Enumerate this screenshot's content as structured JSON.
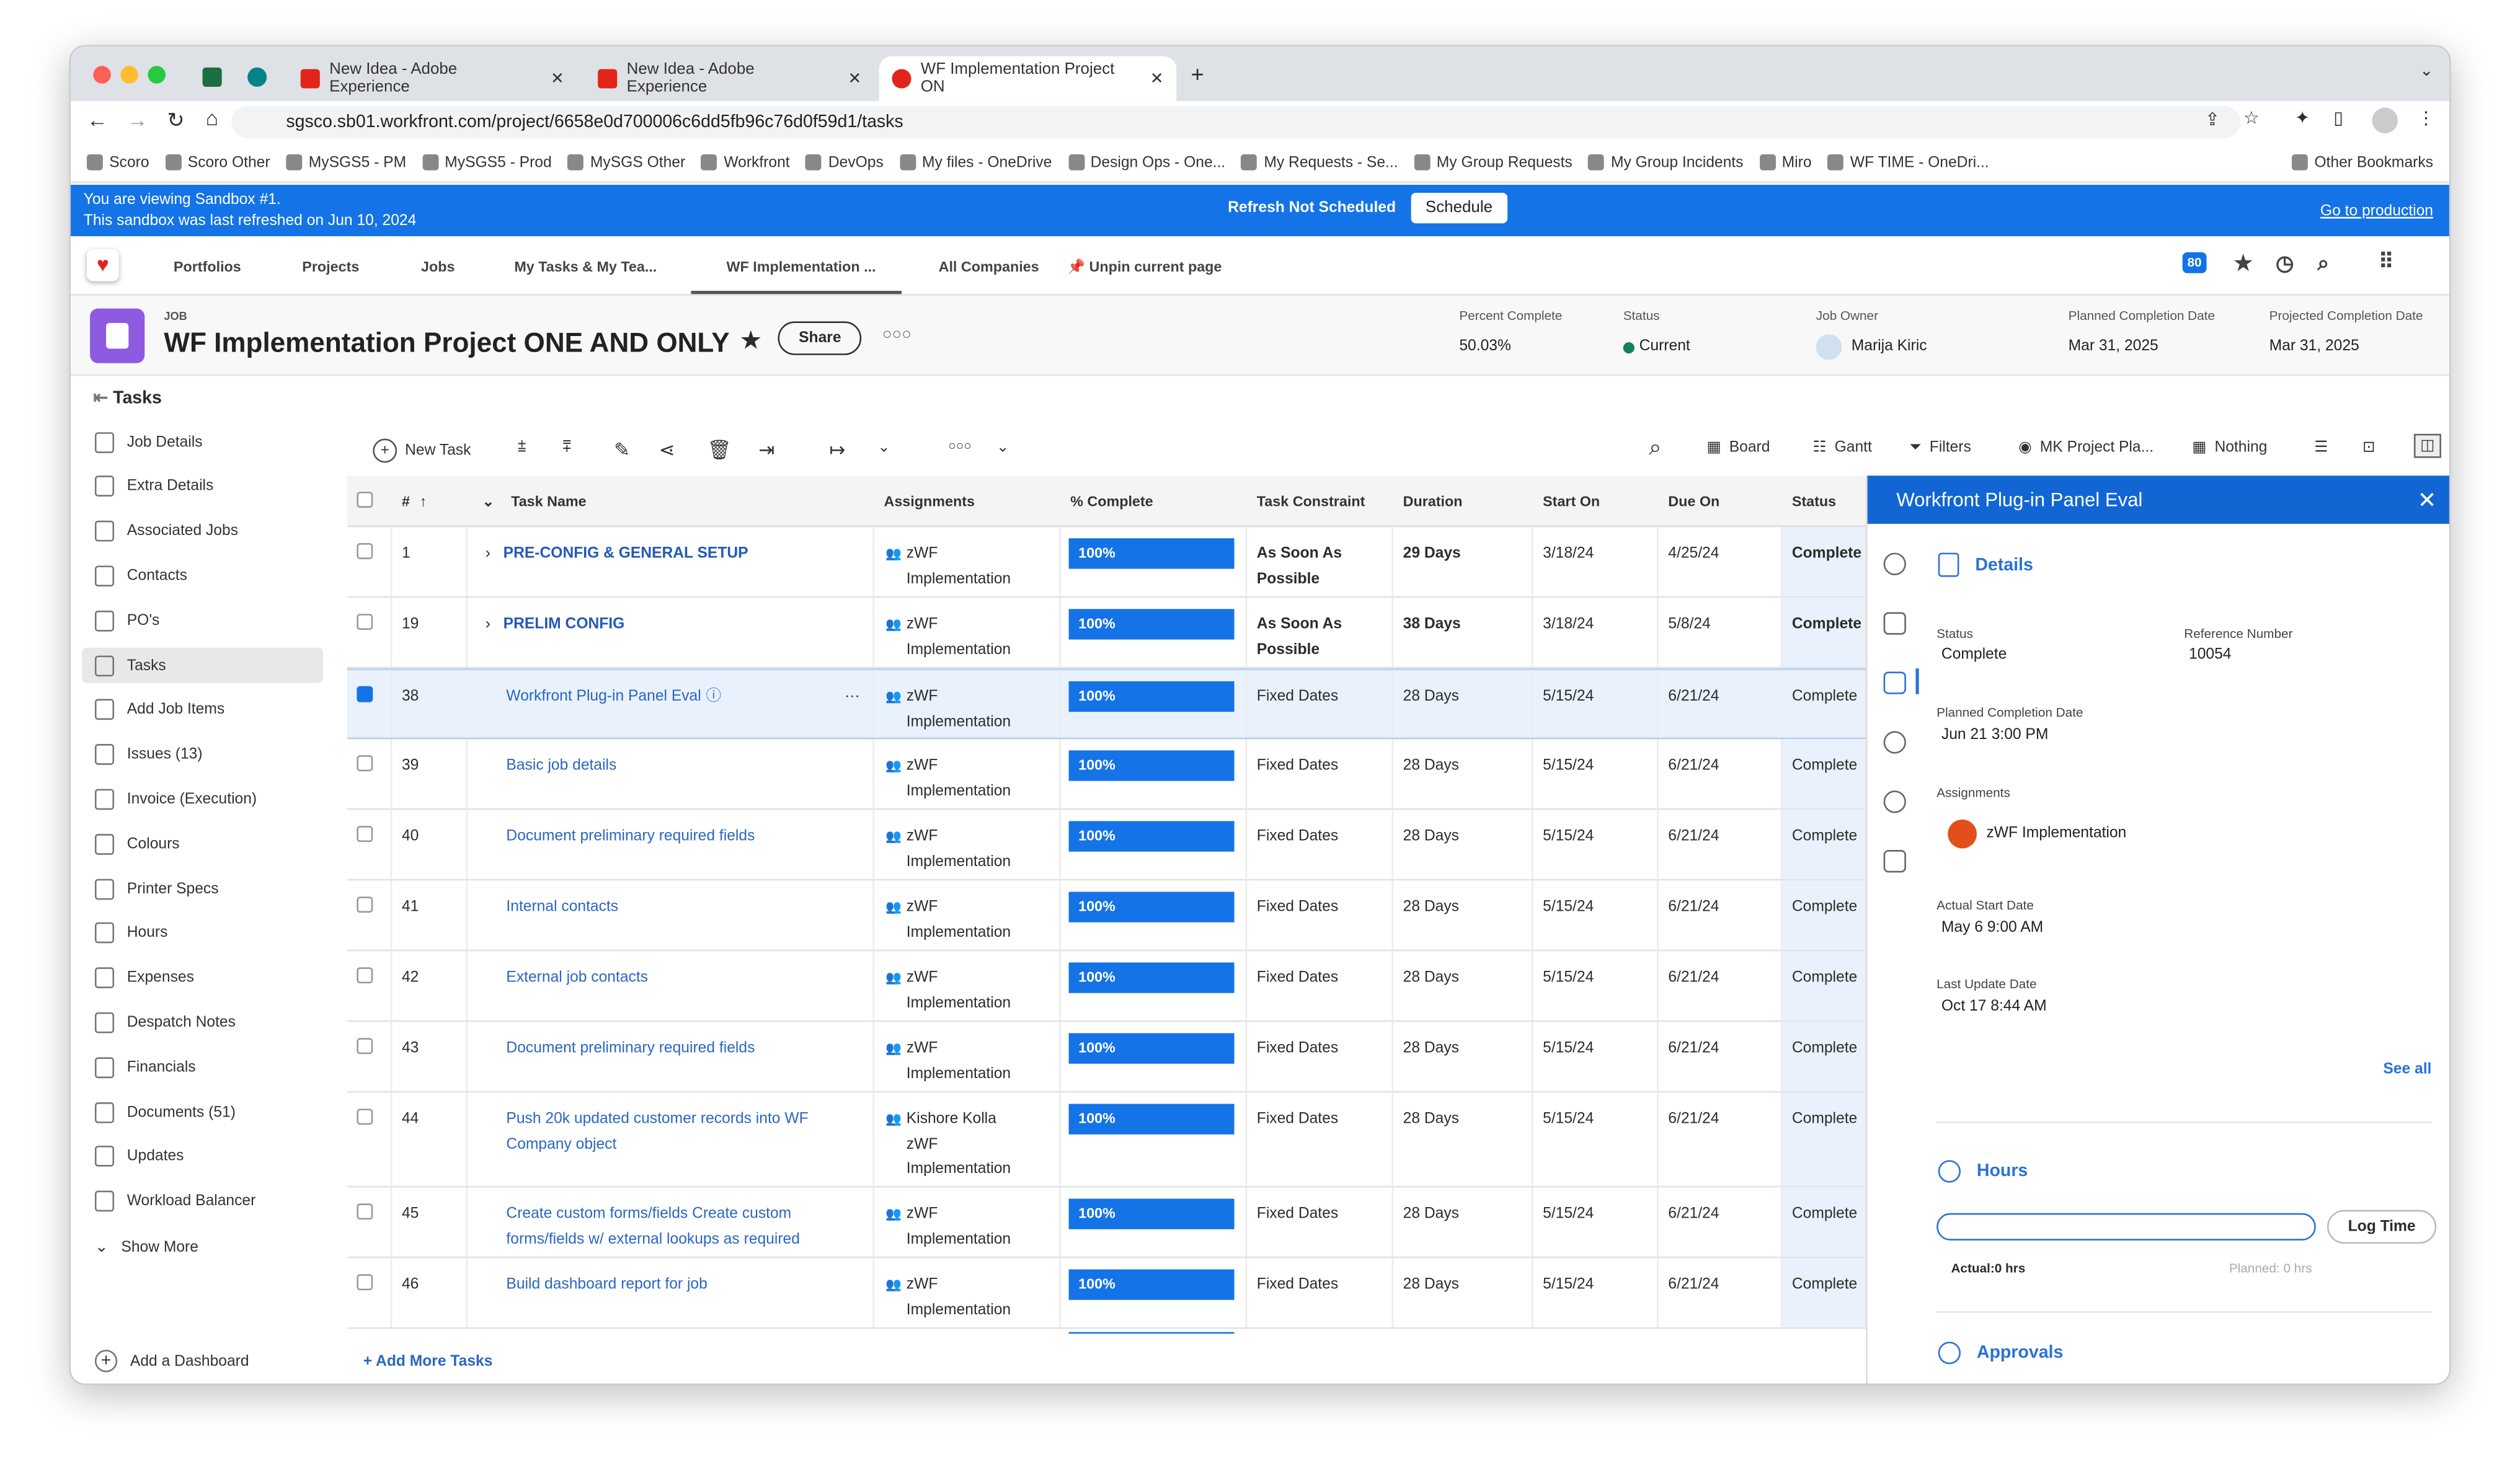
{
  "browser": {
    "tabs": [
      {
        "label": "New Idea - Adobe Experience"
      },
      {
        "label": "New Idea - Adobe Experience"
      },
      {
        "label": "WF Implementation Project ON"
      }
    ],
    "url": "sgsco.sb01.workfront.com/project/6658e0d700006c6dd5fb96c76d0f59d1/tasks",
    "bookmarks": [
      "Scoro",
      "Scoro Other",
      "MySGS5 - PM",
      "MySGS5 - Prod",
      "MySGS Other",
      "Workfront",
      "DevOps",
      "My files - OneDrive",
      "Design Ops - One...",
      "My Requests - Se...",
      "My Group Requests",
      "My Group Incidents",
      "Miro",
      "WF TIME - OneDri..."
    ],
    "other_bookmarks": "Other Bookmarks"
  },
  "banner": {
    "line1": "You are viewing Sandbox #1.",
    "line2": "This sandbox was last refreshed on Jun 10, 2024",
    "refresh": "Refresh Not Scheduled",
    "schedule": "Schedule",
    "production": "Go to production",
    "color": "#1473e6"
  },
  "nav": {
    "items": [
      "Portfolios",
      "Projects",
      "Jobs",
      "My Tasks & My Tea...",
      "WF Implementation ...",
      "All Companies"
    ],
    "unpin": "Unpin current page",
    "badge": "80"
  },
  "header": {
    "type": "JOB",
    "title": "WF Implementation Project ONE AND ONLY",
    "share": "Share",
    "fields": [
      {
        "label": "Percent Complete",
        "value": "50.03%"
      },
      {
        "label": "Status",
        "value": "Current"
      },
      {
        "label": "Job Owner",
        "value": "Marija Kiric"
      },
      {
        "label": "Planned Completion Date",
        "value": "Mar 31, 2025"
      },
      {
        "label": "Projected Completion Date",
        "value": "Mar 31, 2025"
      }
    ]
  },
  "section_title": "Tasks",
  "sidebar": {
    "items": [
      "Job Details",
      "Extra Details",
      "Associated Jobs",
      "Contacts",
      "PO's",
      "Tasks",
      "Add Job Items",
      "Issues (13)",
      "Invoice (Execution)",
      "Colours",
      "Printer Specs",
      "Hours",
      "Expenses",
      "Despatch Notes",
      "Financials",
      "Documents (51)",
      "Updates",
      "Workload Balancer"
    ],
    "active": "Tasks",
    "show_more": "Show More",
    "add_dashboard": "Add a Dashboard"
  },
  "toolbar": {
    "new_task": "New Task",
    "board": "Board",
    "gantt": "Gantt",
    "filters": "Filters",
    "view": "MK Project Pla...",
    "grouping": "Nothing"
  },
  "table": {
    "columns": [
      "#",
      "Task Name",
      "Assignments",
      "% Complete",
      "Task Constraint",
      "Duration",
      "Start On",
      "Due On",
      "Status"
    ],
    "rows": [
      {
        "num": "1",
        "name": "PRE-CONFIG & GENERAL SETUP",
        "parent": true,
        "assign": [
          "zWF",
          "Implementation"
        ],
        "pct": "100%",
        "constraint": "As Soon As Possible",
        "duration": "29 Days",
        "start": "3/18/24",
        "due": "4/25/24",
        "status": "Complete"
      },
      {
        "num": "19",
        "name": "PRELIM CONFIG",
        "parent": true,
        "assign": [
          "zWF",
          "Implementation"
        ],
        "pct": "100%",
        "constraint": "As Soon As Possible",
        "duration": "38 Days",
        "start": "3/18/24",
        "due": "5/8/24",
        "status": "Complete"
      },
      {
        "num": "38",
        "name": "Workfront Plug-in Panel Eval",
        "selected": true,
        "assign": [
          "zWF",
          "Implementation"
        ],
        "pct": "100%",
        "constraint": "Fixed Dates",
        "duration": "28 Days",
        "start": "5/15/24",
        "due": "6/21/24",
        "status": "Complete"
      },
      {
        "num": "39",
        "name": "Basic job details",
        "assign": [
          "zWF",
          "Implementation"
        ],
        "pct": "100%",
        "constraint": "Fixed Dates",
        "duration": "28 Days",
        "start": "5/15/24",
        "due": "6/21/24",
        "status": "Complete"
      },
      {
        "num": "40",
        "name": "Document preliminary required fields",
        "assign": [
          "zWF",
          "Implementation"
        ],
        "pct": "100%",
        "constraint": "Fixed Dates",
        "duration": "28 Days",
        "start": "5/15/24",
        "due": "6/21/24",
        "status": "Complete"
      },
      {
        "num": "41",
        "name": "Internal contacts",
        "assign": [
          "zWF",
          "Implementation"
        ],
        "pct": "100%",
        "constraint": "Fixed Dates",
        "duration": "28 Days",
        "start": "5/15/24",
        "due": "6/21/24",
        "status": "Complete"
      },
      {
        "num": "42",
        "name": "External job contacts",
        "assign": [
          "zWF",
          "Implementation"
        ],
        "pct": "100%",
        "constraint": "Fixed Dates",
        "duration": "28 Days",
        "start": "5/15/24",
        "due": "6/21/24",
        "status": "Complete"
      },
      {
        "num": "43",
        "name": "Document preliminary required fields",
        "assign": [
          "zWF",
          "Implementation"
        ],
        "pct": "100%",
        "constraint": "Fixed Dates",
        "duration": "28 Days",
        "start": "5/15/24",
        "due": "6/21/24",
        "status": "Complete"
      },
      {
        "num": "44",
        "name": "Push 20k updated customer records into WF Company object",
        "assign": [
          "Kishore Kolla",
          "zWF",
          "Implementation"
        ],
        "pct": "100%",
        "constraint": "Fixed Dates",
        "duration": "28 Days",
        "start": "5/15/24",
        "due": "6/21/24",
        "status": "Complete"
      },
      {
        "num": "45",
        "name": "Create custom forms/fields Create custom forms/fields w/ external lookups as required",
        "assign": [
          "zWF",
          "Implementation"
        ],
        "pct": "100%",
        "constraint": "Fixed Dates",
        "duration": "28 Days",
        "start": "5/15/24",
        "due": "6/21/24",
        "status": "Complete"
      },
      {
        "num": "46",
        "name": "Build dashboard report for job",
        "assign": [
          "zWF",
          "Implementation"
        ],
        "pct": "100%",
        "constraint": "Fixed Dates",
        "duration": "28 Days",
        "start": "5/15/24",
        "due": "6/21/24",
        "status": "Complete"
      }
    ],
    "add_more": "+ Add More Tasks"
  },
  "panel": {
    "title": "Workfront Plug-in Panel Eval",
    "details": "Details",
    "status_label": "Status",
    "status": "Complete",
    "ref_label": "Reference Number",
    "ref": "10054",
    "planned_label": "Planned Completion Date",
    "planned": "Jun 21 3:00 PM",
    "assign_label": "Assignments",
    "assign": "zWF Implementation",
    "start_label": "Actual Start Date",
    "start": "May 6 9:00 AM",
    "update_label": "Last Update Date",
    "update": "Oct 17 8:44 AM",
    "see_all": "See all",
    "hours": "Hours",
    "log_time": "Log Time",
    "actual": "Actual:0 hrs",
    "planned_hrs": "Planned: 0 hrs",
    "approvals": "Approvals"
  }
}
